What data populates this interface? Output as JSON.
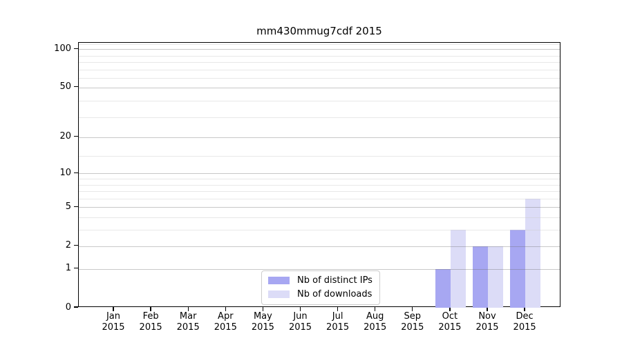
{
  "chart_data": {
    "type": "bar",
    "title": "mm430mmug7cdf 2015",
    "categories": [
      "Jan",
      "Feb",
      "Mar",
      "Apr",
      "May",
      "Jun",
      "Jul",
      "Aug",
      "Sep",
      "Oct",
      "Nov",
      "Dec"
    ],
    "x_year_sublabel": "2015",
    "series": [
      {
        "name": "Nb of distinct IPs",
        "color": "#a7a7f2",
        "values": [
          0,
          0,
          0,
          0,
          0,
          0,
          0,
          0,
          0,
          1,
          2,
          3
        ]
      },
      {
        "name": "Nb of downloads",
        "color": "#dcdcf7",
        "values": [
          0,
          0,
          0,
          0,
          0,
          0,
          0,
          0,
          0,
          3,
          2,
          6
        ]
      }
    ],
    "xlabel": "",
    "ylabel": "",
    "y_scale": "log1p",
    "y_tick_values": [
      0,
      1,
      2,
      5,
      10,
      20,
      50,
      100
    ],
    "y_minor_gridline_values_plus1": [
      4,
      5,
      7,
      8,
      9,
      10,
      15,
      30,
      40,
      60,
      70,
      80,
      90,
      110
    ],
    "ylim": [
      0,
      112
    ],
    "grid": true,
    "legend_position": "lower center-left inside plot",
    "colors": {
      "axis": "#000000",
      "major_grid": "#c6c6c6",
      "minor_grid": "#ececec",
      "background": "#ffffff"
    }
  }
}
